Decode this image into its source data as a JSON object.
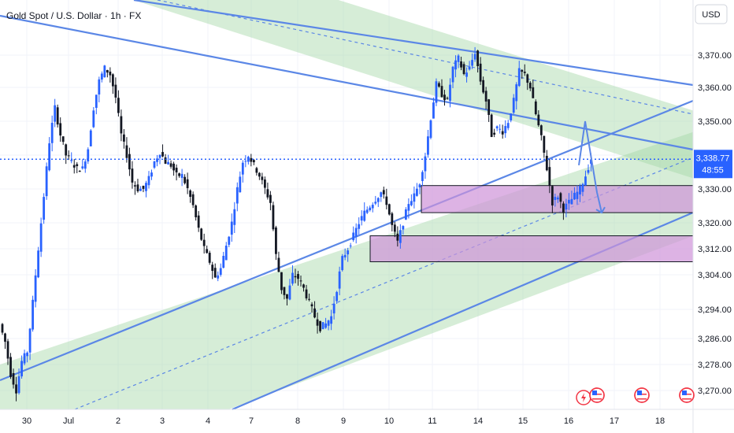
{
  "chart_data": {
    "type": "candlestick",
    "title": "Gold Spot / U.S. Dollar · 1h · FX",
    "currency": "USD",
    "x_ticks": [
      "30",
      "Jul",
      "2",
      "3",
      "4",
      "7",
      "8",
      "9",
      "10",
      "11",
      "14",
      "15",
      "16",
      "17",
      "18"
    ],
    "y_ticks": [
      3270,
      3278,
      3286,
      3294,
      3304,
      3312,
      3320,
      3330,
      3340,
      3350,
      3360,
      3370
    ],
    "y_tick_labels": [
      "3,270.00",
      "3,278.00",
      "3,286.00",
      "3,294.00",
      "3,304.00",
      "3,312.00",
      "3,320.00",
      "3,330.00",
      "3,340.00",
      "3,350.00",
      "3,360.00",
      "3,370.00"
    ],
    "current_price": 3338.77,
    "current_price_label": "3,338.77",
    "countdown_label": "48:55",
    "price_path": [
      [
        0,
        3290
      ],
      [
        1,
        3285
      ],
      [
        2,
        3275
      ],
      [
        3,
        3270
      ],
      [
        4,
        3279
      ],
      [
        5,
        3282
      ],
      [
        6,
        3296
      ],
      [
        7,
        3312
      ],
      [
        8,
        3328
      ],
      [
        9,
        3344
      ],
      [
        10,
        3354
      ],
      [
        11,
        3346
      ],
      [
        12,
        3340
      ],
      [
        13,
        3338
      ],
      [
        14,
        3336
      ],
      [
        15,
        3336
      ],
      [
        16,
        3342
      ],
      [
        17,
        3354
      ],
      [
        18,
        3362
      ],
      [
        19,
        3366
      ],
      [
        20,
        3364
      ],
      [
        21,
        3357
      ],
      [
        22,
        3346
      ],
      [
        23,
        3340
      ],
      [
        24,
        3332
      ],
      [
        25,
        3330
      ],
      [
        26,
        3330
      ],
      [
        27,
        3333
      ],
      [
        28,
        3338
      ],
      [
        29,
        3341
      ],
      [
        30,
        3338
      ],
      [
        31,
        3337
      ],
      [
        32,
        3334
      ],
      [
        33,
        3334
      ],
      [
        34,
        3330
      ],
      [
        35,
        3325
      ],
      [
        36,
        3318
      ],
      [
        37,
        3312
      ],
      [
        38,
        3308
      ],
      [
        39,
        3303
      ],
      [
        40,
        3306
      ],
      [
        41,
        3313
      ],
      [
        42,
        3320
      ],
      [
        43,
        3330
      ],
      [
        44,
        3338
      ],
      [
        45,
        3340
      ],
      [
        46,
        3337
      ],
      [
        47,
        3334
      ],
      [
        48,
        3330
      ],
      [
        49,
        3326
      ],
      [
        50,
        3310
      ],
      [
        51,
        3300
      ],
      [
        52,
        3297
      ],
      [
        53,
        3304
      ],
      [
        54,
        3303
      ],
      [
        55,
        3300
      ],
      [
        56,
        3296
      ],
      [
        57,
        3292
      ],
      [
        58,
        3289
      ],
      [
        59,
        3290
      ],
      [
        60,
        3292
      ],
      [
        61,
        3300
      ],
      [
        62,
        3309
      ],
      [
        63,
        3312
      ],
      [
        64,
        3316
      ],
      [
        65,
        3320
      ],
      [
        66,
        3323
      ],
      [
        67,
        3325
      ],
      [
        68,
        3327
      ],
      [
        69,
        3329
      ],
      [
        70,
        3326
      ],
      [
        71,
        3319
      ],
      [
        72,
        3314
      ],
      [
        73,
        3320
      ],
      [
        74,
        3326
      ],
      [
        75,
        3328
      ],
      [
        76,
        3332
      ],
      [
        77,
        3340
      ],
      [
        78,
        3351
      ],
      [
        79,
        3361
      ],
      [
        80,
        3358
      ],
      [
        81,
        3356
      ],
      [
        82,
        3366
      ],
      [
        83,
        3369
      ],
      [
        84,
        3364
      ],
      [
        85,
        3366
      ],
      [
        86,
        3371
      ],
      [
        87,
        3362
      ],
      [
        88,
        3356
      ],
      [
        89,
        3346
      ],
      [
        90,
        3348
      ],
      [
        91,
        3347
      ],
      [
        92,
        3350
      ],
      [
        93,
        3356
      ],
      [
        94,
        3365
      ],
      [
        95,
        3364
      ],
      [
        96,
        3360
      ],
      [
        97,
        3352
      ],
      [
        98,
        3345
      ],
      [
        99,
        3336
      ],
      [
        100,
        3326
      ],
      [
        101,
        3328
      ],
      [
        102,
        3324
      ],
      [
        103,
        3326
      ],
      [
        104,
        3328
      ],
      [
        105,
        3330
      ],
      [
        106,
        3334
      ],
      [
        107,
        3339
      ]
    ],
    "annotations": {
      "channels": [
        {
          "kind": "descending",
          "from": [
            0,
            3410
          ],
          "to": [
            136,
            3342
          ]
        },
        {
          "kind": "ascending",
          "from": [
            0,
            3278
          ],
          "to": [
            136,
            3344
          ]
        }
      ],
      "zones": [
        {
          "x_from": 81,
          "x_to": 136,
          "y_low": 3323,
          "y_high": 3331
        },
        {
          "x_from": 70,
          "x_to": 136,
          "y_low": 3308,
          "y_high": 3316
        }
      ],
      "projection": [
        [
          107,
          3337
        ],
        [
          110,
          3350
        ],
        [
          113,
          3329
        ],
        [
          115,
          3323
        ]
      ]
    }
  }
}
